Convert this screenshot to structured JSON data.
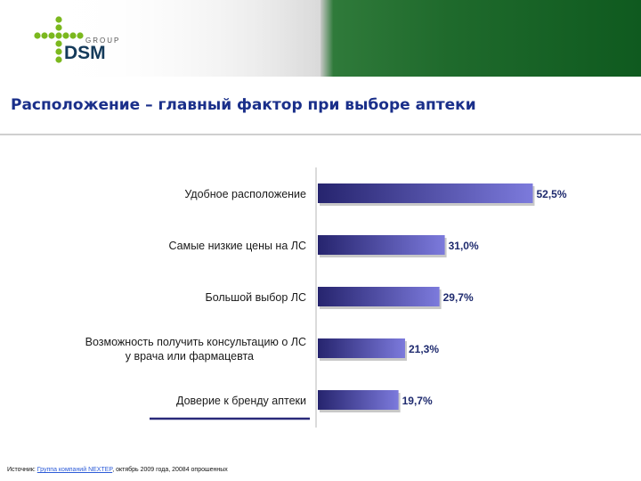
{
  "header": {
    "logo_text": "DSM",
    "logo_group": "GROUP"
  },
  "title": "Расположение – главный фактор при выборе аптеки",
  "colors": {
    "bar_dark": "#26246e",
    "bar_light": "#7c7adc",
    "label": "#1e2a6e"
  },
  "chart_data": {
    "type": "bar",
    "orientation": "horizontal",
    "categories": [
      "Удобное расположение",
      "Самые низкие цены на ЛС",
      "Большой выбор ЛС",
      "Возможность получить консультацию о ЛС у врача или фармацевта",
      "Доверие к бренду аптеки"
    ],
    "category_lines": [
      [
        "Удобное расположение"
      ],
      [
        "Самые низкие цены на ЛС"
      ],
      [
        "Большой выбор ЛС"
      ],
      [
        "Возможность получить консультацию о ЛС",
        "у врача или фармацевта"
      ],
      [
        "Доверие к бренду аптеки"
      ]
    ],
    "values": [
      52.5,
      31.0,
      29.7,
      21.3,
      19.7
    ],
    "value_labels": [
      "52,5%",
      "31,0%",
      "29,7%",
      "21,3%",
      "19,7%"
    ],
    "xlim": [
      0,
      60
    ],
    "highlighted_category": "Доверие к бренду аптеки",
    "grid": false,
    "legend": "none"
  },
  "source": {
    "prefix": "Источник: ",
    "link_text": "Группа компаний NEXTEP",
    "suffix": ", октябрь 2009 года, 20084 опрошенных"
  }
}
